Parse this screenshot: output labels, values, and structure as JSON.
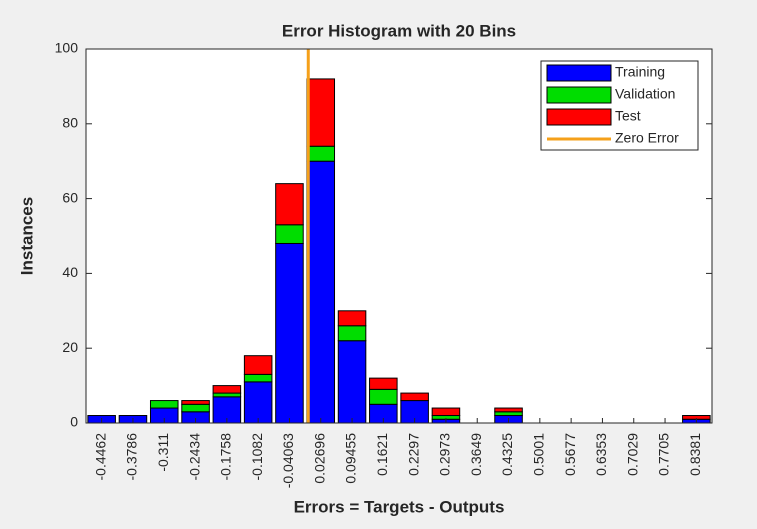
{
  "chart_data": {
    "type": "stacked_histogram",
    "title": "Error Histogram with 20 Bins",
    "xlabel": "Errors = Targets - Outputs",
    "ylabel": "Instances",
    "x": [
      -0.4462,
      -0.3786,
      -0.311,
      -0.2434,
      -0.1758,
      -0.1082,
      -0.04063,
      0.02696,
      0.09455,
      0.1621,
      0.2297,
      0.2973,
      0.3649,
      0.4325,
      0.5001,
      0.5677,
      0.6353,
      0.7029,
      0.7705,
      0.8381
    ],
    "xlim": [
      -0.48,
      0.8719
    ],
    "ylim": [
      0,
      100
    ],
    "yticks": [
      0,
      20,
      40,
      60,
      80,
      100
    ],
    "series": [
      {
        "name": "Training",
        "color": "#0000ff",
        "values": [
          2,
          2,
          4,
          3,
          7,
          11,
          48,
          70,
          22,
          5,
          6,
          1,
          0,
          2,
          0,
          0,
          0,
          0,
          0,
          1
        ]
      },
      {
        "name": "Validation",
        "color": "#00dd00",
        "values": [
          0,
          0,
          2,
          2,
          1,
          2,
          5,
          4,
          4,
          4,
          0,
          1,
          0,
          1,
          0,
          0,
          0,
          0,
          0,
          0
        ]
      },
      {
        "name": "Test",
        "color": "#ff0000",
        "values": [
          0,
          0,
          0,
          1,
          2,
          5,
          11,
          18,
          4,
          3,
          2,
          2,
          0,
          1,
          0,
          0,
          0,
          0,
          0,
          1
        ]
      }
    ],
    "reference_line": {
      "name": "Zero Error",
      "color": "#f5a01a",
      "x": 0
    },
    "legend": "upper right"
  }
}
